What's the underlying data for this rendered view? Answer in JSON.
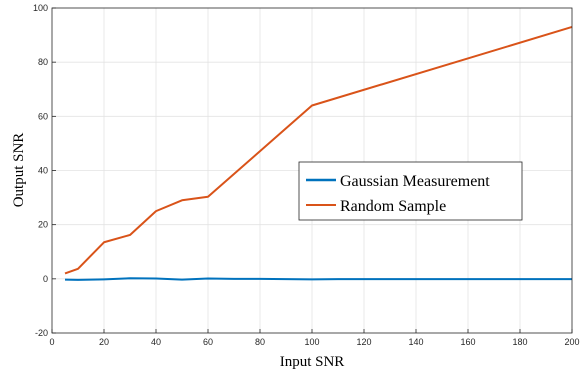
{
  "chart_data": {
    "type": "line",
    "xlabel": "Input SNR",
    "ylabel": "Output SNR",
    "xlim": [
      0,
      200
    ],
    "ylim": [
      -20,
      100
    ],
    "xticks": [
      0,
      20,
      40,
      60,
      80,
      100,
      120,
      140,
      160,
      180,
      200
    ],
    "yticks": [
      -20,
      0,
      20,
      40,
      60,
      80,
      100
    ],
    "grid": true,
    "legend_position": "center-right",
    "series": [
      {
        "name": "Gaussian Measurement",
        "color": "#0072BD",
        "x": [
          5,
          10,
          20,
          30,
          40,
          50,
          60,
          70,
          80,
          90,
          100,
          110,
          120,
          130,
          140,
          150,
          160,
          170,
          180,
          190,
          200
        ],
        "y": [
          -0.3,
          -0.4,
          -0.2,
          0.2,
          0.1,
          -0.3,
          0.1,
          0.0,
          0.0,
          -0.1,
          -0.2,
          -0.1,
          -0.1,
          -0.1,
          -0.1,
          -0.1,
          -0.1,
          -0.1,
          -0.1,
          -0.1,
          -0.1
        ]
      },
      {
        "name": "Random Sample",
        "color": "#D95319",
        "x": [
          5,
          10,
          20,
          30,
          40,
          50,
          60,
          100,
          200
        ],
        "y": [
          2.0,
          3.7,
          13.5,
          16.2,
          25.0,
          29.0,
          30.3,
          64.0,
          93.0
        ]
      }
    ]
  }
}
